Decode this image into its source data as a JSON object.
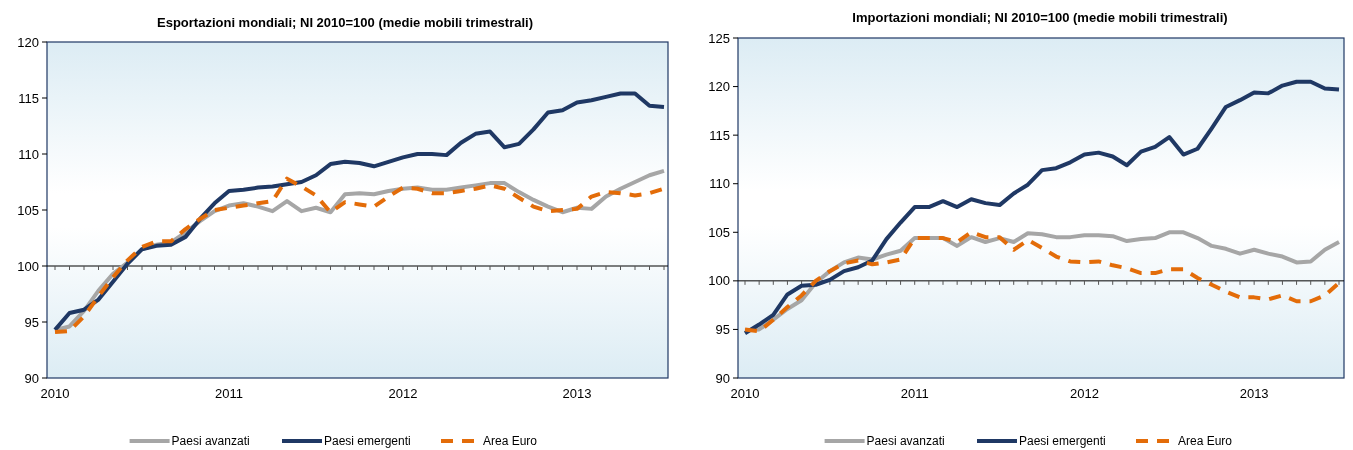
{
  "chart_data": [
    {
      "type": "line",
      "title": "Esportazioni mondiali; NI 2010=100 (medie mobili trimestrali)",
      "categories": [
        "2010",
        null,
        null,
        null,
        null,
        null,
        null,
        null,
        null,
        null,
        null,
        null,
        "2011",
        null,
        null,
        null,
        null,
        null,
        null,
        null,
        null,
        null,
        null,
        null,
        "2012",
        null,
        null,
        null,
        null,
        null,
        null,
        null,
        null,
        null,
        null,
        null,
        "2013",
        null,
        null,
        null,
        null,
        null,
        null
      ],
      "ylim": [
        90,
        120
      ],
      "yticks": [
        90,
        95,
        100,
        105,
        110,
        115,
        120
      ],
      "ref_lines": [
        {
          "axis": "y",
          "value": 100,
          "color": "#000000"
        }
      ],
      "legend": "bottom",
      "grid": false,
      "series": [
        {
          "name": "Paesi avanzati",
          "color": "#a6a6a6",
          "line_style": "solid",
          "values": [
            94.3,
            94.6,
            96.0,
            97.8,
            99.3,
            100.3,
            101.5,
            101.9,
            102.1,
            103.0,
            104.0,
            104.9,
            105.4,
            105.6,
            105.3,
            104.9,
            105.8,
            104.9,
            105.2,
            104.8,
            106.4,
            106.5,
            106.4,
            106.7,
            106.9,
            107.0,
            106.8,
            106.8,
            107.0,
            107.2,
            107.4,
            107.4,
            106.6,
            105.9,
            105.3,
            104.8,
            105.2,
            105.1,
            106.2,
            106.9,
            107.5,
            108.1,
            108.5
          ]
        },
        {
          "name": "Paesi emergenti",
          "color": "#1f3864",
          "line_style": "solid",
          "values": [
            94.3,
            95.8,
            96.1,
            97.0,
            98.6,
            100.2,
            101.5,
            101.8,
            101.9,
            102.6,
            104.2,
            105.6,
            106.7,
            106.8,
            107.0,
            107.1,
            107.3,
            107.5,
            108.1,
            109.1,
            109.3,
            109.2,
            108.9,
            109.3,
            109.7,
            110.0,
            110.0,
            109.9,
            111.0,
            111.8,
            112.0,
            110.6,
            110.9,
            112.2,
            113.7,
            113.9,
            114.6,
            114.8,
            115.1,
            115.4,
            115.4,
            114.3,
            114.2
          ]
        },
        {
          "name": "Area Euro",
          "color": "#e36c09",
          "line_style": "dashed",
          "values": [
            94.1,
            94.2,
            95.5,
            97.3,
            99.0,
            100.5,
            101.7,
            102.2,
            102.2,
            103.3,
            104.2,
            105.0,
            105.2,
            105.4,
            105.6,
            105.8,
            107.8,
            107.1,
            106.3,
            104.8,
            105.7,
            105.5,
            105.3,
            106.2,
            107.0,
            106.9,
            106.5,
            106.5,
            106.7,
            106.9,
            107.2,
            106.9,
            106.1,
            105.3,
            104.9,
            105.0,
            105.1,
            106.2,
            106.6,
            106.5,
            106.3,
            106.5,
            106.9
          ]
        }
      ]
    },
    {
      "type": "line",
      "title": "Importazioni mondiali; NI 2010=100 (medie mobili trimestrali)",
      "categories": [
        "2010",
        null,
        null,
        null,
        null,
        null,
        null,
        null,
        null,
        null,
        null,
        null,
        "2011",
        null,
        null,
        null,
        null,
        null,
        null,
        null,
        null,
        null,
        null,
        null,
        "2012",
        null,
        null,
        null,
        null,
        null,
        null,
        null,
        null,
        null,
        null,
        null,
        "2013",
        null,
        null,
        null,
        null,
        null,
        null
      ],
      "ylim": [
        90,
        125
      ],
      "yticks": [
        90,
        95,
        100,
        105,
        110,
        115,
        120,
        125
      ],
      "ref_lines": [
        {
          "axis": "y",
          "value": 100,
          "color": "#000000"
        }
      ],
      "legend": "bottom",
      "grid": false,
      "series": [
        {
          "name": "Paesi avanzati",
          "color": "#a6a6a6",
          "line_style": "solid",
          "values": [
            94.9,
            95.0,
            96.0,
            97.1,
            98.0,
            99.8,
            101.0,
            101.9,
            102.4,
            102.2,
            102.7,
            103.1,
            104.4,
            104.4,
            104.4,
            103.6,
            104.5,
            104.0,
            104.4,
            104.0,
            104.9,
            104.8,
            104.5,
            104.5,
            104.7,
            104.7,
            104.6,
            104.1,
            104.3,
            104.4,
            105.0,
            105.0,
            104.4,
            103.6,
            103.3,
            102.8,
            103.2,
            102.8,
            102.5,
            101.9,
            102.0,
            103.2,
            104.0
          ]
        },
        {
          "name": "Paesi emergenti",
          "color": "#1f3864",
          "line_style": "solid",
          "values": [
            94.6,
            95.5,
            96.5,
            98.6,
            99.5,
            99.6,
            100.1,
            101.0,
            101.4,
            102.1,
            104.3,
            106.0,
            107.6,
            107.6,
            108.2,
            107.6,
            108.4,
            108.0,
            107.8,
            109.0,
            109.9,
            111.4,
            111.6,
            112.2,
            113.0,
            113.2,
            112.8,
            111.9,
            113.3,
            113.8,
            114.8,
            113.0,
            113.6,
            115.7,
            117.9,
            118.6,
            119.4,
            119.3,
            120.1,
            120.5,
            120.5,
            119.8,
            119.7
          ]
        },
        {
          "name": "Area Euro",
          "color": "#e36c09",
          "line_style": "dashed",
          "values": [
            95.0,
            94.8,
            96.0,
            97.3,
            98.5,
            100.0,
            101.0,
            101.8,
            102.1,
            101.7,
            101.9,
            102.2,
            104.4,
            104.4,
            104.4,
            104.0,
            105.0,
            104.5,
            104.5,
            103.2,
            104.2,
            103.4,
            102.5,
            102.0,
            101.9,
            102.0,
            101.6,
            101.3,
            100.8,
            100.8,
            101.2,
            101.2,
            100.3,
            99.6,
            98.9,
            98.3,
            98.3,
            98.1,
            98.5,
            97.9,
            97.9,
            98.5,
            99.8
          ]
        }
      ]
    }
  ]
}
